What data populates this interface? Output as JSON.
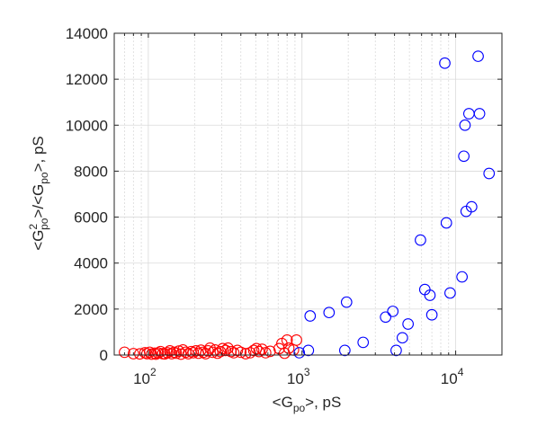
{
  "chart_data": {
    "type": "scatter",
    "title": "",
    "xlabel": {
      "prefix": "<G",
      "sub": "po",
      "suffix": ">, pS"
    },
    "ylabel": {
      "p1": "<G",
      "sup": "2",
      "sub1": "po",
      "p2": ">/<G",
      "sub2": "po",
      "p3": ">, pS"
    },
    "x_scale": "log",
    "xlim": [
      60,
      20000
    ],
    "ylim": [
      0,
      14000
    ],
    "x_ticks": [
      {
        "value": 100,
        "base": "10",
        "exp": "2"
      },
      {
        "value": 1000,
        "base": "10",
        "exp": "3"
      },
      {
        "value": 10000,
        "base": "10",
        "exp": "4"
      }
    ],
    "y_ticks": [
      {
        "value": 0,
        "label": "0"
      },
      {
        "value": 2000,
        "label": "2000"
      },
      {
        "value": 4000,
        "label": "4000"
      },
      {
        "value": 6000,
        "label": "6000"
      },
      {
        "value": 8000,
        "label": "8000"
      },
      {
        "value": 10000,
        "label": "10000"
      },
      {
        "value": 12000,
        "label": "12000"
      },
      {
        "value": 14000,
        "label": "14000"
      }
    ],
    "grid": true,
    "legend": false,
    "series": [
      {
        "color": "#ff0000",
        "marker": "open-circle",
        "points": [
          [
            70,
            120
          ],
          [
            80,
            60
          ],
          [
            88,
            50
          ],
          [
            95,
            100
          ],
          [
            98,
            60
          ],
          [
            102,
            120
          ],
          [
            105,
            40
          ],
          [
            110,
            80
          ],
          [
            112,
            40
          ],
          [
            116,
            90
          ],
          [
            120,
            150
          ],
          [
            124,
            60
          ],
          [
            128,
            50
          ],
          [
            133,
            100
          ],
          [
            138,
            180
          ],
          [
            142,
            60
          ],
          [
            147,
            120
          ],
          [
            152,
            80
          ],
          [
            158,
            170
          ],
          [
            163,
            40
          ],
          [
            168,
            220
          ],
          [
            175,
            120
          ],
          [
            182,
            60
          ],
          [
            190,
            150
          ],
          [
            196,
            100
          ],
          [
            204,
            180
          ],
          [
            212,
            80
          ],
          [
            220,
            210
          ],
          [
            228,
            120
          ],
          [
            236,
            60
          ],
          [
            245,
            180
          ],
          [
            252,
            300
          ],
          [
            262,
            120
          ],
          [
            272,
            220
          ],
          [
            282,
            80
          ],
          [
            294,
            150
          ],
          [
            305,
            280
          ],
          [
            318,
            200
          ],
          [
            330,
            300
          ],
          [
            345,
            150
          ],
          [
            360,
            100
          ],
          [
            380,
            200
          ],
          [
            400,
            120
          ],
          [
            430,
            60
          ],
          [
            460,
            100
          ],
          [
            485,
            200
          ],
          [
            505,
            280
          ],
          [
            525,
            150
          ],
          [
            550,
            250
          ],
          [
            580,
            100
          ],
          [
            620,
            160
          ],
          [
            710,
            280
          ],
          [
            740,
            500
          ],
          [
            770,
            80
          ],
          [
            800,
            650
          ],
          [
            820,
            300
          ],
          [
            880,
            220
          ],
          [
            920,
            650
          ]
        ]
      },
      {
        "color": "#0000ff",
        "marker": "open-circle",
        "points": [
          [
            960,
            100
          ],
          [
            1100,
            200
          ],
          [
            1130,
            1700
          ],
          [
            1500,
            1850
          ],
          [
            1900,
            200
          ],
          [
            1950,
            2300
          ],
          [
            2500,
            550
          ],
          [
            3500,
            1650
          ],
          [
            3900,
            1900
          ],
          [
            4100,
            200
          ],
          [
            4500,
            750
          ],
          [
            4900,
            1350
          ],
          [
            5900,
            5000
          ],
          [
            6300,
            2850
          ],
          [
            6800,
            2600
          ],
          [
            7000,
            1750
          ],
          [
            8500,
            12700
          ],
          [
            8700,
            5750
          ],
          [
            9200,
            2700
          ],
          [
            11000,
            3400
          ],
          [
            11300,
            8650
          ],
          [
            11500,
            10000
          ],
          [
            11700,
            6250
          ],
          [
            12200,
            10500
          ],
          [
            12700,
            6450
          ],
          [
            14000,
            13000
          ],
          [
            14300,
            10500
          ],
          [
            16500,
            7900
          ]
        ]
      }
    ]
  }
}
